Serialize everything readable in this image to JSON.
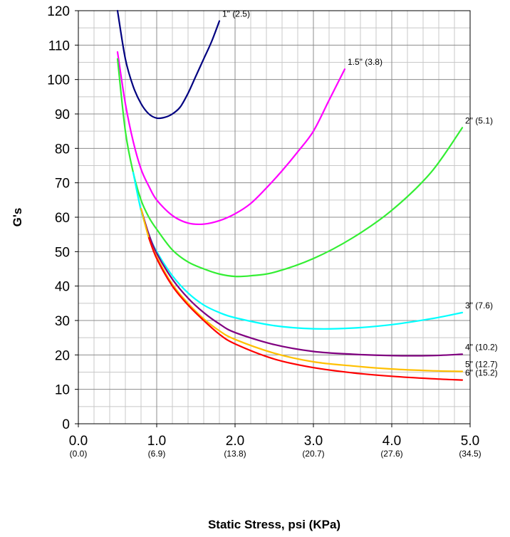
{
  "chart_data": {
    "type": "line",
    "title": "",
    "xlabel": "Static Stress, psi (KPa)",
    "ylabel": "G's",
    "xlim": [
      0,
      5
    ],
    "ylim": [
      0,
      120
    ],
    "grid": true,
    "legend": "inline labels at right end of each curve",
    "x_ticks": [
      {
        "value": 0.0,
        "label": "0.0",
        "sub": "(0.0)"
      },
      {
        "value": 1.0,
        "label": "1.0",
        "sub": "(6.9)"
      },
      {
        "value": 2.0,
        "label": "2.0",
        "sub": "(13.8)"
      },
      {
        "value": 3.0,
        "label": "3.0",
        "sub": "(20.7)"
      },
      {
        "value": 4.0,
        "label": "4.0",
        "sub": "(27.6)"
      },
      {
        "value": 5.0,
        "label": "5.0",
        "sub": "(34.5)"
      }
    ],
    "y_ticks": [
      0,
      10,
      20,
      30,
      40,
      50,
      60,
      70,
      80,
      90,
      100,
      110,
      120
    ],
    "series": [
      {
        "name": "1\" (2.5)",
        "color": "#000080",
        "x": [
          0.5,
          0.6,
          0.7,
          0.8,
          0.9,
          1.0,
          1.1,
          1.2,
          1.3,
          1.4,
          1.5,
          1.6,
          1.7,
          1.8
        ],
        "y": [
          120,
          106,
          98,
          93,
          90,
          88.8,
          89,
          90,
          92,
          96,
          101,
          106,
          111,
          117
        ]
      },
      {
        "name": "1.5\" (3.8)",
        "color": "#ff00ff",
        "x": [
          0.5,
          0.6,
          0.7,
          0.8,
          0.9,
          1.0,
          1.2,
          1.4,
          1.6,
          1.8,
          2.0,
          2.2,
          2.4,
          2.6,
          2.8,
          3.0,
          3.2,
          3.4
        ],
        "y": [
          108,
          93,
          82,
          74,
          69,
          65,
          60.5,
          58.3,
          58,
          59,
          61,
          64,
          68.5,
          73.5,
          79,
          85,
          94,
          103
        ]
      },
      {
        "name": "2\" (5.1)",
        "color": "#33ee33",
        "x": [
          0.5,
          0.6,
          0.7,
          0.8,
          0.9,
          1.0,
          1.2,
          1.4,
          1.6,
          1.8,
          2.0,
          2.2,
          2.5,
          3.0,
          3.5,
          4.0,
          4.5,
          4.9
        ],
        "y": [
          106,
          85,
          73,
          65,
          60,
          56.5,
          50.5,
          47,
          45,
          43.5,
          42.8,
          43,
          44,
          48,
          54,
          62,
          73,
          86
        ]
      },
      {
        "name": "3\" (7.6)",
        "color": "#00ffff",
        "x": [
          0.7,
          0.8,
          0.9,
          1.0,
          1.2,
          1.4,
          1.6,
          1.8,
          2.0,
          2.5,
          3.0,
          3.5,
          4.0,
          4.5,
          4.9
        ],
        "y": [
          73,
          62,
          55,
          50,
          43,
          38,
          34.5,
          32.3,
          30.8,
          28.5,
          27.6,
          27.8,
          28.8,
          30.5,
          32.3
        ]
      },
      {
        "name": "4\" (10.2)",
        "color": "#800080",
        "x": [
          0.8,
          0.9,
          1.0,
          1.2,
          1.4,
          1.6,
          1.8,
          2.0,
          2.5,
          3.0,
          3.5,
          4.0,
          4.5,
          4.9
        ],
        "y": [
          62.5,
          55,
          49.5,
          42,
          36.5,
          32.3,
          29,
          26.5,
          23,
          21,
          20.2,
          19.8,
          19.8,
          20.2
        ]
      },
      {
        "name": "5\" (12.7)",
        "color": "#ffc000",
        "x": [
          0.8,
          0.9,
          1.0,
          1.2,
          1.4,
          1.6,
          1.8,
          2.0,
          2.5,
          3.0,
          3.5,
          4.0,
          4.5,
          4.9
        ],
        "y": [
          62.5,
          54,
          48.5,
          40.5,
          35,
          30.5,
          27,
          24.5,
          20.5,
          18,
          16.8,
          15.9,
          15.4,
          15.2
        ]
      },
      {
        "name": "6\" (15.2)",
        "color": "#ff0000",
        "x": [
          0.9,
          1.0,
          1.2,
          1.4,
          1.6,
          1.8,
          2.0,
          2.5,
          3.0,
          3.5,
          4.0,
          4.5,
          4.9
        ],
        "y": [
          54,
          48,
          40,
          34.5,
          30,
          26,
          23.2,
          18.8,
          16.3,
          14.8,
          13.8,
          13.1,
          12.7
        ]
      }
    ]
  }
}
